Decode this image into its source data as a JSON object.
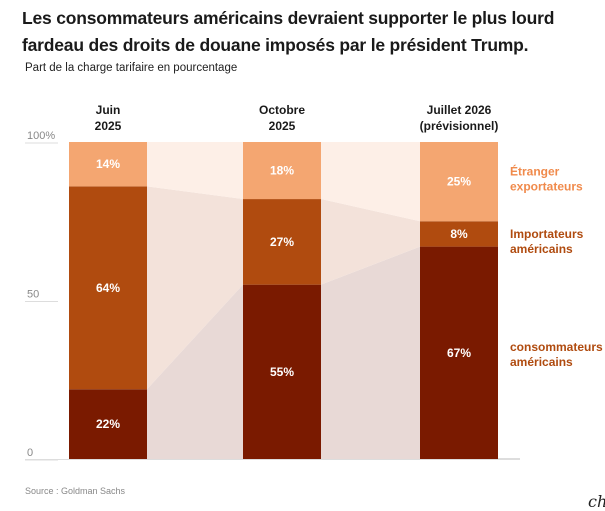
{
  "title": "Les consommateurs américains devraient supporter le plus lourd fardeau des droits de douane imposés par le président Trump.",
  "subtitle": "Part de la charge tarifaire en pourcentage",
  "source": "Source :   Goldman Sachs",
  "logo": "ch",
  "chart_data": {
    "type": "bar",
    "stacked": true,
    "title": "Les consommateurs américains devraient supporter le plus lourd fardeau des droits de douane imposés par le président Trump.",
    "subtitle": "Part de la charge tarifaire en pourcentage",
    "categories": [
      [
        "Juin",
        "2025"
      ],
      [
        "Octobre",
        "2025"
      ],
      [
        "Juillet 2026",
        "(prévisionnel)"
      ]
    ],
    "ylim": [
      0,
      100
    ],
    "yticks": [
      0,
      50,
      100
    ],
    "ytick_labels": [
      "0",
      "50",
      "100%"
    ],
    "grid": false,
    "legend_position": "right",
    "series": [
      {
        "name": "consommateurs américains",
        "legend": [
          "consommateurs",
          "américains"
        ],
        "color": "#7a1a00",
        "values": [
          22,
          55,
          67
        ],
        "labels": [
          "22%",
          "55%",
          "67%"
        ]
      },
      {
        "name": "Importateurs américains",
        "legend": [
          "Importateurs",
          "américains"
        ],
        "color": "#b04b0f",
        "values": [
          64,
          27,
          8
        ],
        "labels": [
          "64%",
          "27%",
          "8%"
        ]
      },
      {
        "name": "Étranger exportateurs",
        "legend": [
          "Étranger",
          "exportateurs"
        ],
        "color": "#f4a671",
        "values": [
          14,
          18,
          25
        ],
        "labels": [
          "14%",
          "18%",
          "25%"
        ]
      }
    ],
    "flow_colors": [
      "#e8d9d6",
      "#f3e2da",
      "#fdefe7"
    ],
    "legend_colors": [
      "#b04b0f",
      "#b04b0f",
      "#f08a4b"
    ],
    "source": "Goldman Sachs"
  }
}
